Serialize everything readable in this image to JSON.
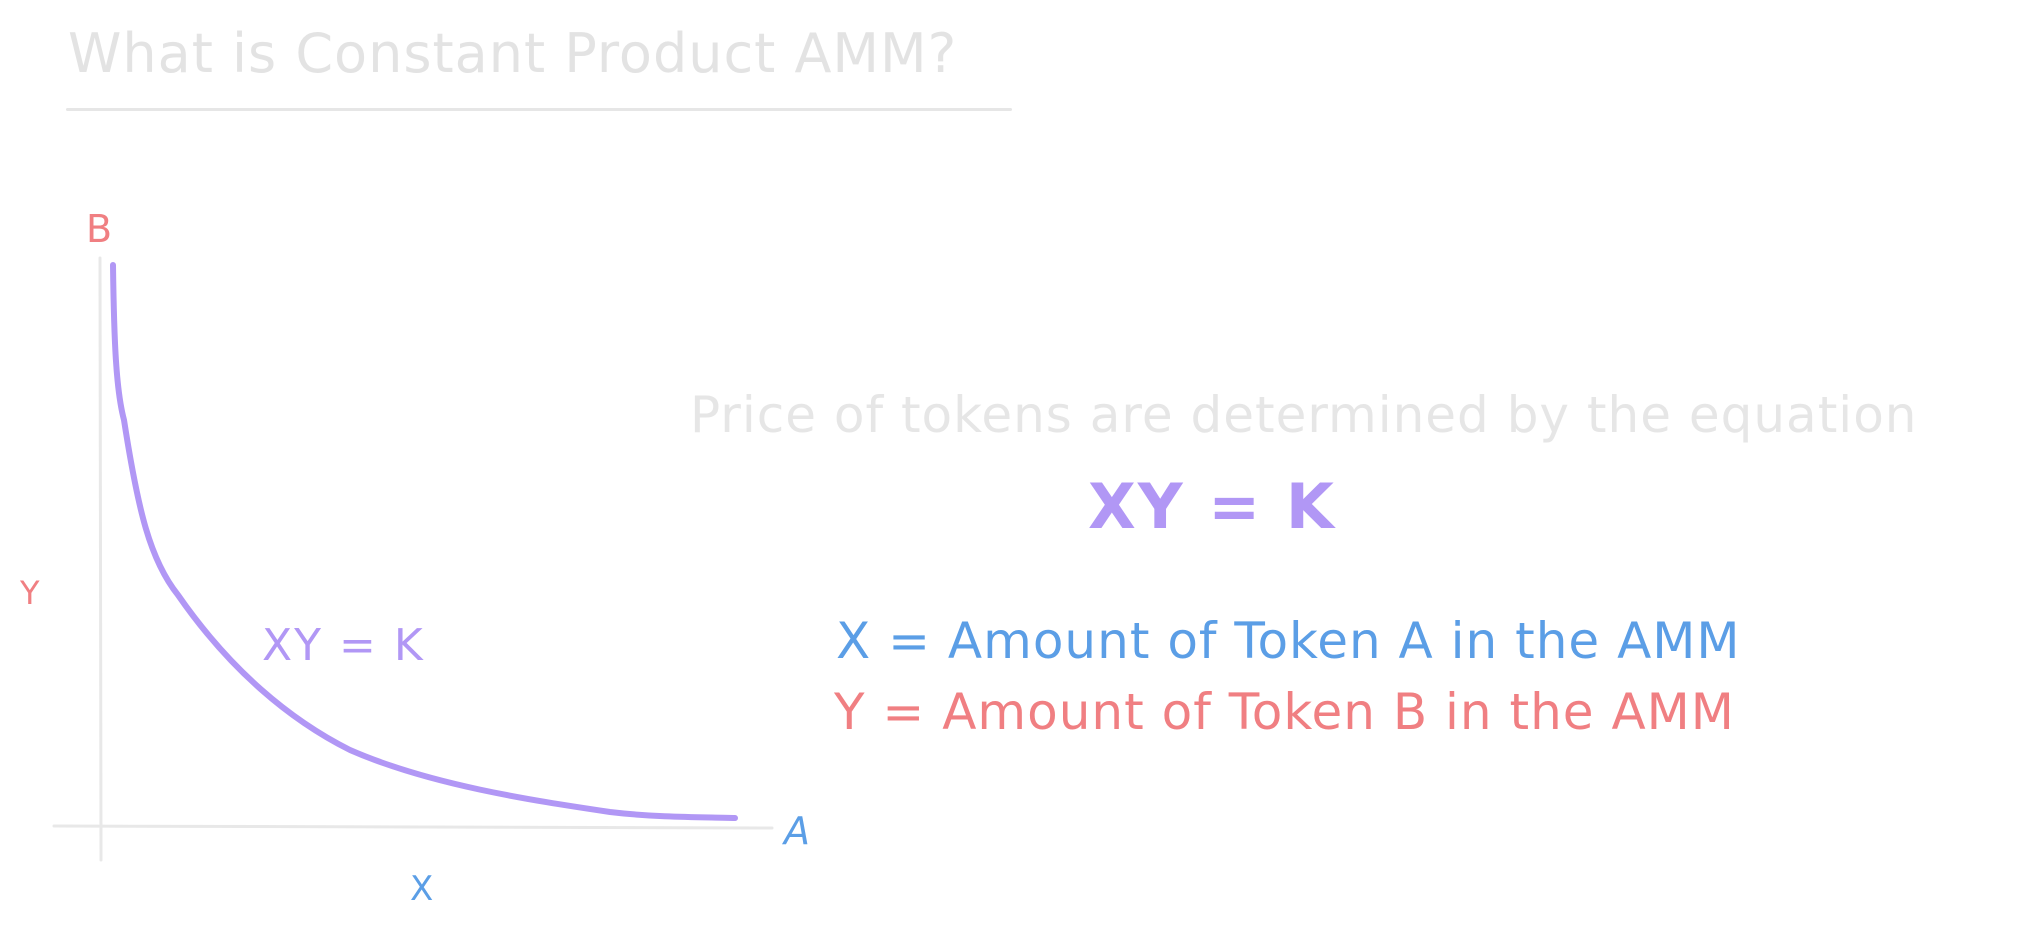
{
  "title": "What is Constant Product AMM?",
  "description": "Price of tokens are determined by the equation",
  "equation": "XY = K",
  "definitions": {
    "x": "X = Amount of Token A in the AMM",
    "y": "Y = Amount of Token B in the AMM"
  },
  "graph": {
    "y_axis_end_label": "B",
    "y_axis_label": "Y",
    "x_axis_end_label": "A",
    "x_axis_label": "X",
    "curve_label": "XY = K"
  },
  "colors": {
    "curve": "#b197f5",
    "token_a": "#5b9ee6",
    "token_b": "#f07f82",
    "faint": "#e3e3e3"
  }
}
